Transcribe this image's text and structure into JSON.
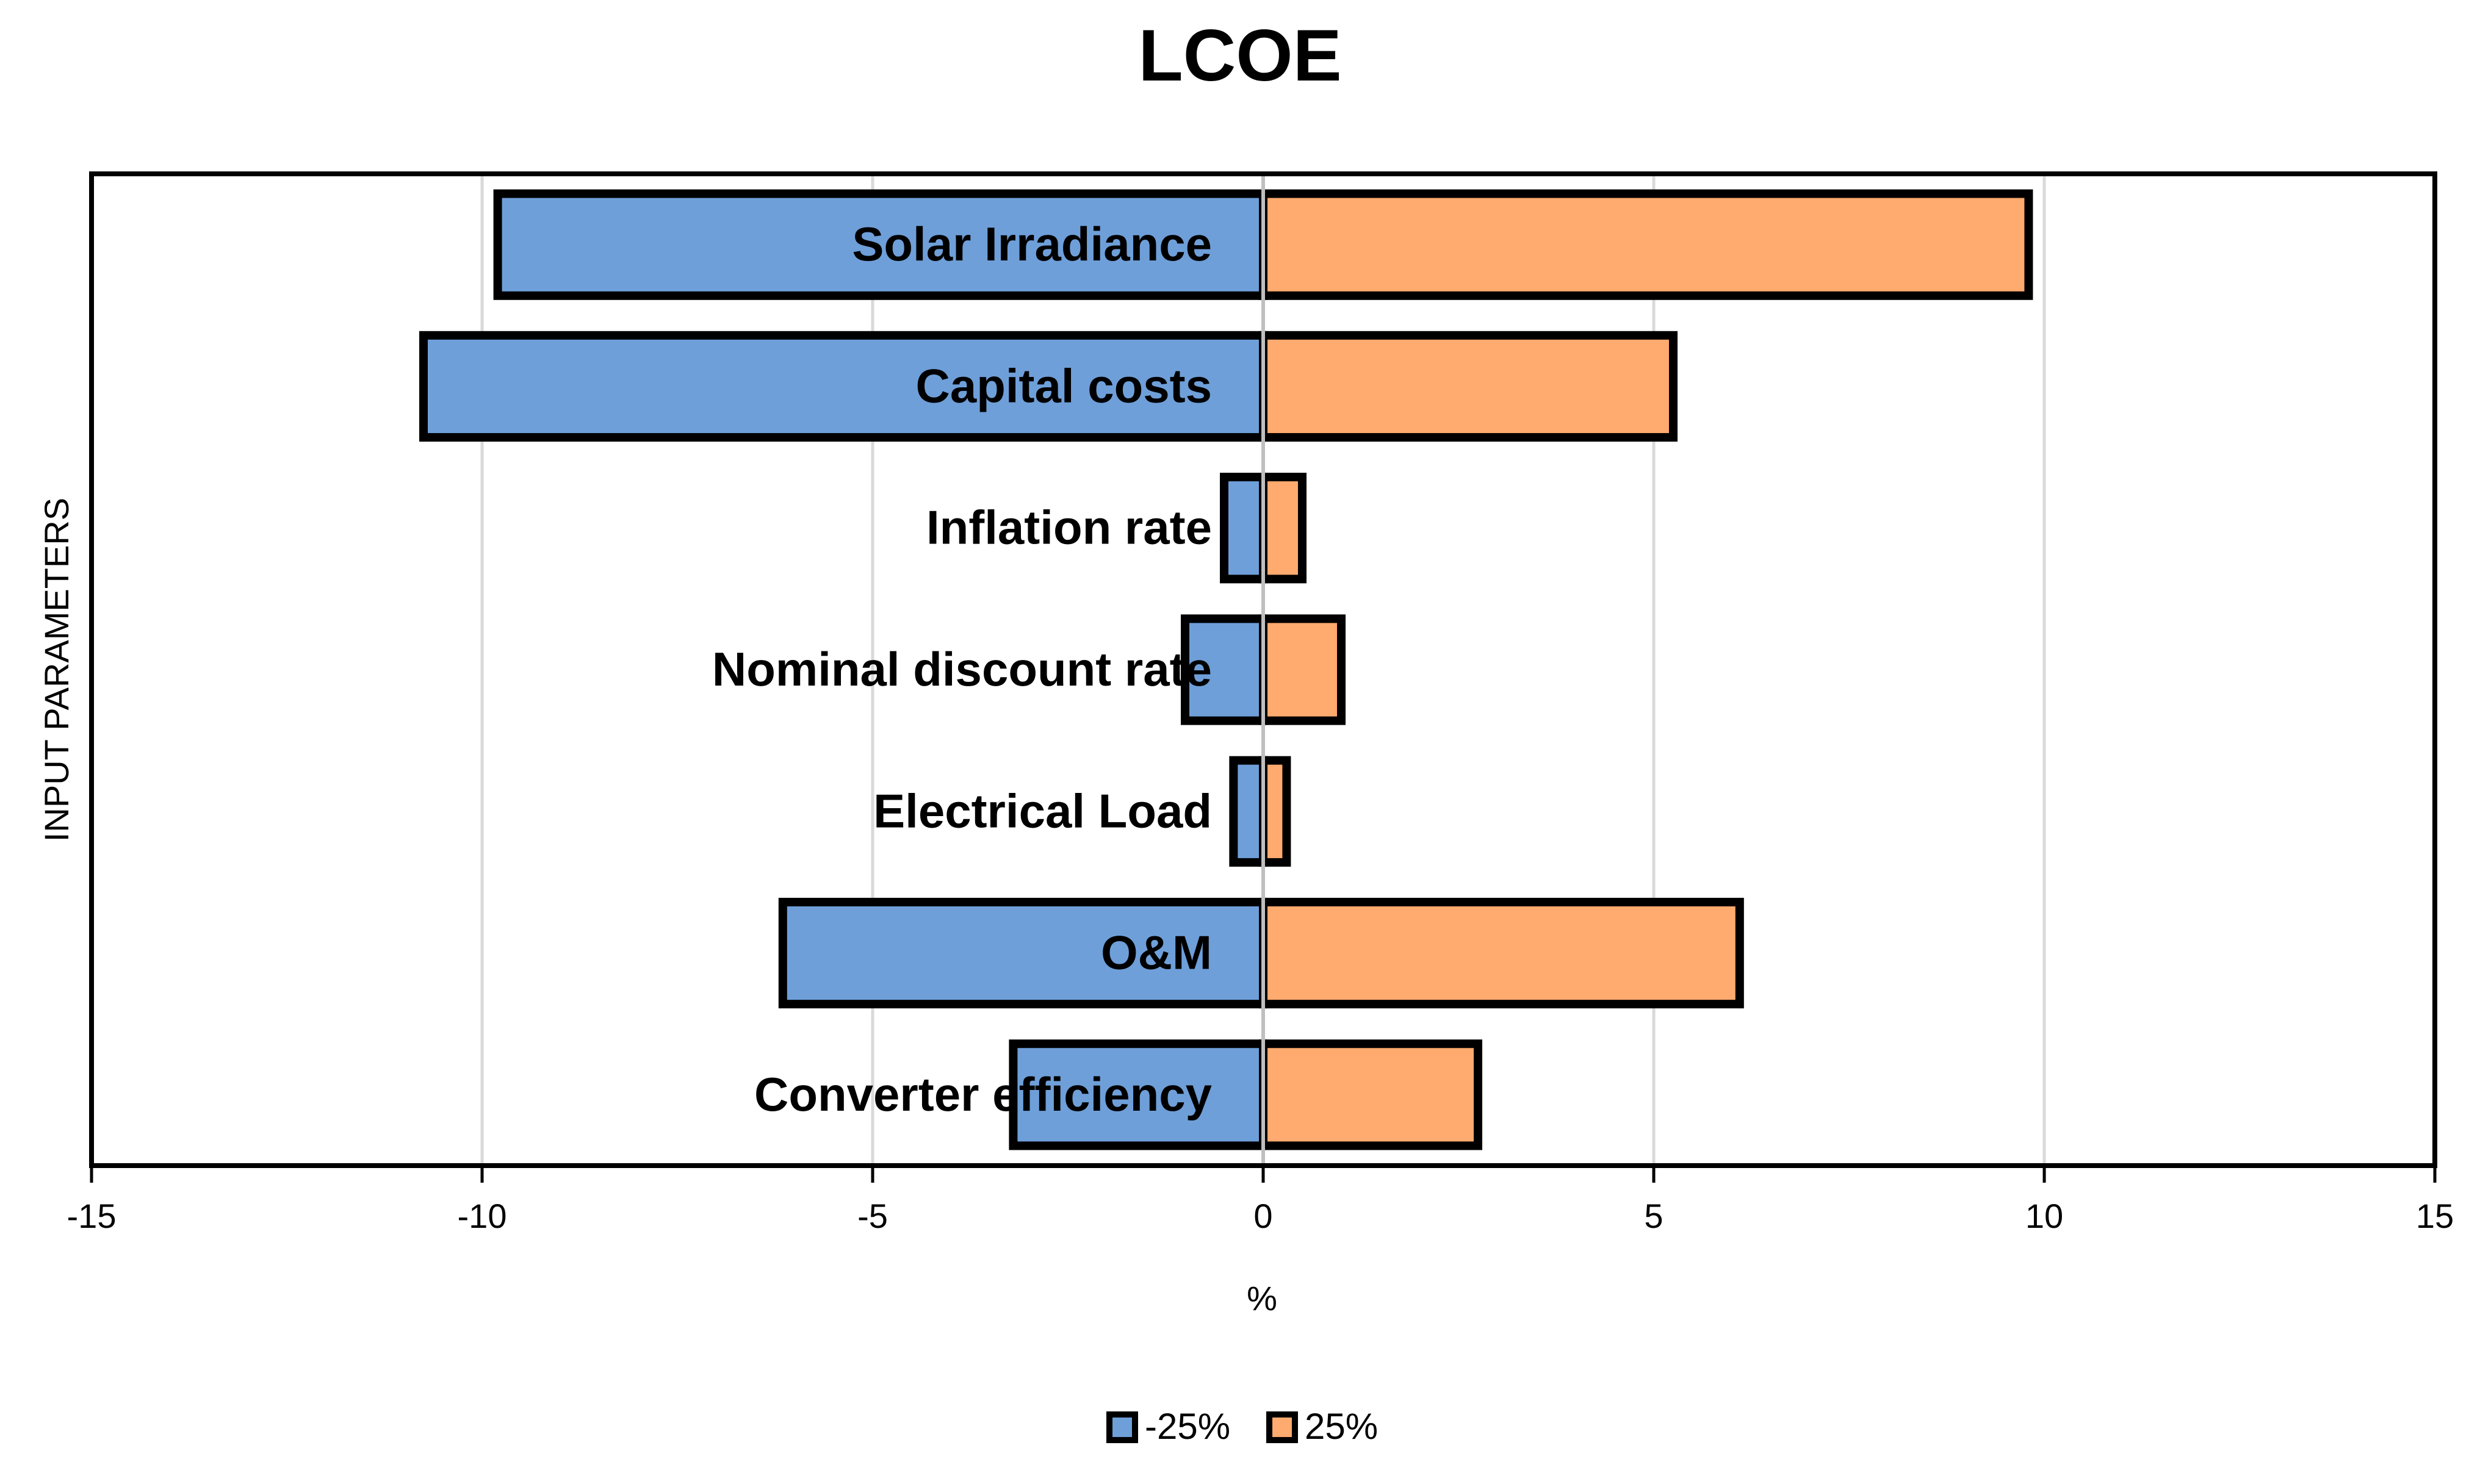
{
  "chart_data": {
    "type": "bar",
    "orientation": "horizontal",
    "title": "LCOE",
    "xlabel": "%",
    "ylabel": "INPUT PARAMETERS",
    "xlim": [
      -15,
      15
    ],
    "xticks": [
      -15,
      -10,
      -5,
      0,
      5,
      10,
      15
    ],
    "xtick_labels": [
      "-15",
      "-10",
      "-5",
      "0",
      "5",
      "10",
      "15"
    ],
    "grid": true,
    "legend_position": "bottom-center",
    "categories": [
      "Solar Irradiance",
      "Capital costs",
      "Inflation rate",
      "Nominal discount rate",
      "Electrical Load",
      "O&M",
      "Converter efficiency"
    ],
    "series": [
      {
        "name": "-25%",
        "color": "#6E9FD9",
        "values": [
          -9.8,
          -10.75,
          -0.5,
          -1.0,
          -0.38,
          -6.15,
          -3.2
        ]
      },
      {
        "name": "25%",
        "color": "#FFAA6E",
        "values": [
          9.8,
          5.25,
          0.5,
          1.0,
          0.3,
          6.1,
          2.75
        ]
      }
    ],
    "colors": {
      "bar_outline": "#000000",
      "grid": "#D9D9D9",
      "frame": "#000000",
      "zero_line": "#BFBFBF"
    }
  }
}
